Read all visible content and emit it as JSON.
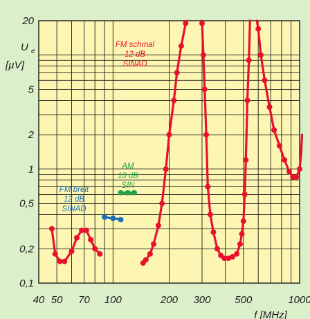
{
  "chart_data": {
    "type": "line",
    "xscale": "log",
    "yscale": "log",
    "xlim": [
      40,
      1000
    ],
    "ylim": [
      0.1,
      20
    ],
    "grid": true,
    "colors": {
      "background": "#dcefcb",
      "plot": "#fdf6b2",
      "grid": "#1a1a1a",
      "fm_schmal": "#e8112d",
      "fm_breit": "#1c6fb5",
      "am": "#1ea34a"
    },
    "xticks": [
      "40",
      "50",
      "70",
      "100",
      "200",
      "300",
      "500",
      "1000"
    ],
    "xtick_values": [
      40,
      50,
      70,
      100,
      200,
      300,
      500,
      1000
    ],
    "yticks": [
      "0,1",
      "0,2",
      "0,5",
      "1",
      "2",
      "5",
      "20"
    ],
    "ytick_values": [
      0.1,
      0.2,
      0.5,
      1,
      2,
      5,
      20
    ],
    "xlabel": "f [MHz]",
    "ylabel_main": "U",
    "ylabel_sub": "e",
    "ylabel_unit": "[µV]",
    "annotations": {
      "fm_schmal": [
        "FM schmal",
        "12 dB",
        "SINAD"
      ],
      "fm_breit": [
        "FM breit",
        "12 dB",
        "SINAD"
      ],
      "am": [
        "AM",
        "10 dB",
        "SIN"
      ]
    },
    "series": [
      {
        "key": "fm_schmal",
        "segments": [
          [
            [
              47,
              0.3
            ],
            [
              49,
              0.18
            ],
            [
              52,
              0.155
            ],
            [
              55,
              0.155
            ],
            [
              60,
              0.19
            ],
            [
              64,
              0.25
            ],
            [
              68,
              0.29
            ],
            [
              72,
              0.29
            ],
            [
              76,
              0.24
            ],
            [
              80,
              0.2
            ],
            [
              85,
              0.18
            ]
          ],
          [
            [
              145,
              0.15
            ],
            [
              150,
              0.16
            ],
            [
              158,
              0.18
            ],
            [
              165,
              0.22
            ],
            [
              175,
              0.32
            ],
            [
              183,
              0.5
            ],
            [
              192,
              1.0
            ],
            [
              200,
              2.0
            ],
            [
              212,
              4.0
            ],
            [
              220,
              7.0
            ],
            [
              232,
              12.0
            ],
            [
              245,
              19.0
            ],
            [
              250,
              22.0
            ]
          ],
          [
            [
              298,
              22.0
            ],
            [
              300,
              19.0
            ],
            [
              305,
              10.0
            ],
            [
              310,
              5.0
            ],
            [
              316,
              2.0
            ],
            [
              322,
              0.7
            ],
            [
              332,
              0.4
            ],
            [
              345,
              0.28
            ],
            [
              362,
              0.2
            ],
            [
              378,
              0.175
            ],
            [
              395,
              0.165
            ],
            [
              415,
              0.165
            ],
            [
              437,
              0.17
            ],
            [
              460,
              0.18
            ],
            [
              480,
              0.22
            ],
            [
              490,
              0.27
            ],
            [
              500,
              0.35
            ],
            [
              508,
              0.6
            ],
            [
              515,
              1.2
            ],
            [
              525,
              4.0
            ],
            [
              535,
              9.0
            ],
            [
              542,
              22.0
            ]
          ],
          [
            [
              590,
              22.0
            ],
            [
              600,
              17.0
            ],
            [
              620,
              10.0
            ],
            [
              650,
              6.0
            ],
            [
              690,
              3.5
            ],
            [
              730,
              2.2
            ],
            [
              780,
              1.6
            ],
            [
              830,
              1.2
            ],
            [
              880,
              0.95
            ],
            [
              920,
              0.85
            ],
            [
              960,
              0.85
            ],
            [
              1000,
              1.0
            ],
            [
              1020,
              1.4
            ],
            [
              1030,
              2.0
            ]
          ]
        ]
      },
      {
        "key": "fm_breit",
        "segments": [
          [
            [
              90,
              0.38
            ],
            [
              100,
              0.37
            ],
            [
              110,
              0.36
            ]
          ]
        ]
      },
      {
        "key": "am",
        "segments": [
          [
            [
              110,
              0.62
            ],
            [
              120,
              0.62
            ],
            [
              130,
              0.62
            ]
          ]
        ]
      }
    ]
  }
}
